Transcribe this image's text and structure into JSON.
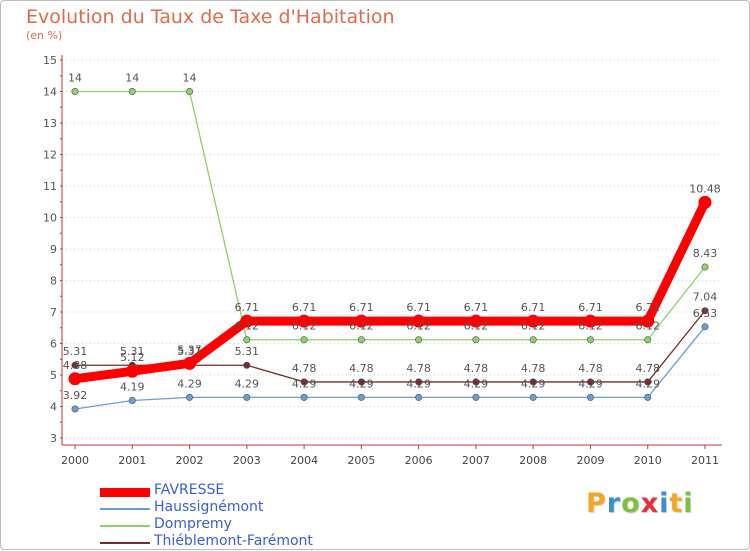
{
  "header": {
    "title": "Evolution du Taux de Taxe d'Habitation",
    "unit": "(en %)"
  },
  "brand": {
    "letters": [
      "P",
      "r",
      "o",
      "x",
      "i",
      "t",
      "i"
    ],
    "colors": [
      "#f5a623",
      "#3b8fd6",
      "#7cc242",
      "#e2313b",
      "#3b8fd6",
      "#f5a623",
      "#7cc242"
    ]
  },
  "chart_data": {
    "type": "line",
    "title": "Evolution du Taux de Taxe d'Habitation",
    "ylabel": "(en %)",
    "xlabel": "",
    "x": [
      "2000",
      "2001",
      "2002",
      "2003",
      "2004",
      "2005",
      "2006",
      "2007",
      "2008",
      "2009",
      "2010",
      "2011"
    ],
    "ylim": [
      3,
      15
    ],
    "yticks": [
      "3",
      "4",
      "5",
      "6",
      "7",
      "8",
      "9",
      "10",
      "11",
      "12",
      "13",
      "14",
      "15"
    ],
    "grid": "horizontal dotted",
    "legend_position": "bottom-left",
    "series": [
      {
        "name": "FAVRESSE",
        "color": "#ff0000",
        "values": [
          4.88,
          5.12,
          5.37,
          6.71,
          6.71,
          6.71,
          6.71,
          6.71,
          6.71,
          6.71,
          6.71,
          10.48
        ],
        "labels": [
          "4.88",
          "5.12",
          "5.37",
          "6.71",
          "6.71",
          "6.71",
          "6.71",
          "6.71",
          "6.71",
          "6.71",
          "6.71",
          "10.48"
        ]
      },
      {
        "name": "Haussignémont",
        "color": "#6a9fd4",
        "values": [
          3.92,
          4.19,
          4.29,
          4.29,
          4.29,
          4.29,
          4.29,
          4.29,
          4.29,
          4.29,
          4.29,
          6.53
        ],
        "labels": [
          "3.92",
          "4.19",
          "4.29",
          "4.29",
          "4.29",
          "4.29",
          "4.29",
          "4.29",
          "4.29",
          "4.29",
          "4.29",
          "6.53"
        ]
      },
      {
        "name": "Dompremy",
        "color": "#8fd16a",
        "values": [
          14,
          14,
          14,
          6.12,
          6.12,
          6.12,
          6.12,
          6.12,
          6.12,
          6.12,
          6.12,
          8.43
        ],
        "labels": [
          "14",
          "14",
          "14",
          "6.12",
          "6.12",
          "6.12",
          "6.12",
          "6.12",
          "6.12",
          "6.12",
          "6.12",
          "8.43"
        ]
      },
      {
        "name": "Thiéblemont-Farémont",
        "color": "#7a2a2a",
        "values": [
          5.31,
          5.31,
          5.31,
          5.31,
          4.78,
          4.78,
          4.78,
          4.78,
          4.78,
          4.78,
          4.78,
          7.04
        ],
        "labels": [
          "5.31",
          "5.31",
          "5.31",
          "5.31",
          "4.78",
          "4.78",
          "4.78",
          "4.78",
          "4.78",
          "4.78",
          "4.78",
          "7.04"
        ]
      }
    ]
  }
}
